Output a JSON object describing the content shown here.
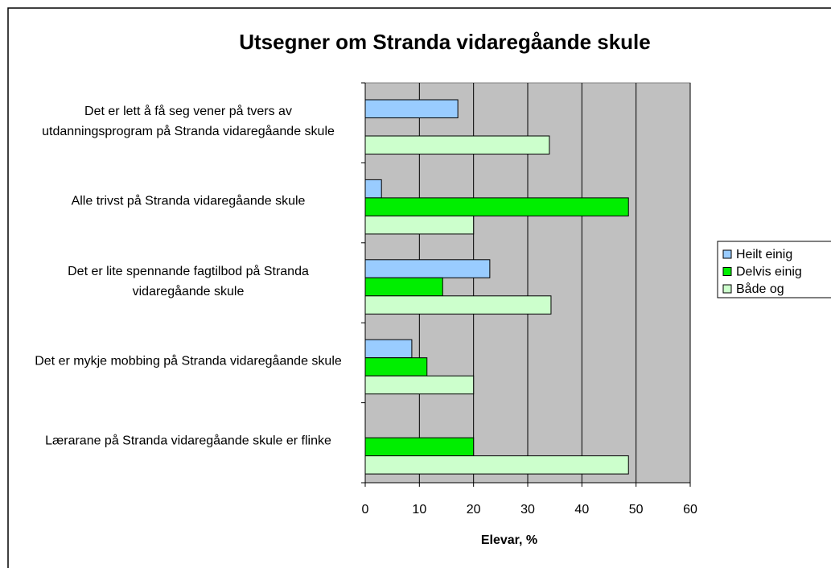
{
  "chart_data": {
    "type": "bar",
    "orientation": "horizontal",
    "title": "Utsegner om Stranda vidaregåande skule",
    "x_label": "Elevar, %",
    "categories": [
      "Det er lett å få seg vener på tvers av utdanningsprogram på Stranda vidaregåande skule",
      "Alle trivst på Stranda vidaregåande skule",
      "Det er lite spennande fagtilbod på Stranda vidaregåande skule",
      "Det er mykje mobbing på Stranda vidaregåande skule",
      "Lærarane på Stranda vidaregåande skule er flinke"
    ],
    "series": [
      {
        "name": "Heilt einig",
        "color": "#99ccff",
        "values": [
          17.1,
          3,
          23,
          8.6,
          null
        ]
      },
      {
        "name": "Delvis einig",
        "color": "#00ee00",
        "values": [
          null,
          48.6,
          14.3,
          11.4,
          20
        ]
      },
      {
        "name": "Både og",
        "color": "#ccffcc",
        "values": [
          34,
          20,
          34.3,
          20,
          48.6
        ]
      }
    ],
    "xlim": [
      0,
      60
    ],
    "xticks": [
      0,
      10,
      20,
      30,
      40,
      50,
      60
    ],
    "grid": true,
    "legend": "right",
    "plot_background": "#c0c0c0"
  }
}
